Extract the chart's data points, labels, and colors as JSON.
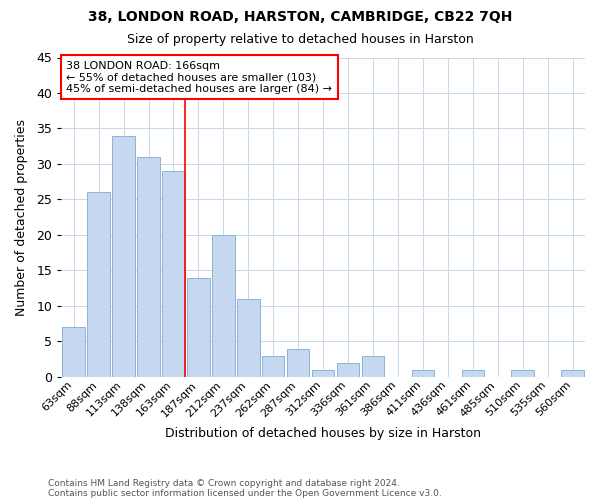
{
  "title1": "38, LONDON ROAD, HARSTON, CAMBRIDGE, CB22 7QH",
  "title2": "Size of property relative to detached houses in Harston",
  "xlabel": "Distribution of detached houses by size in Harston",
  "ylabel": "Number of detached properties",
  "footer1": "Contains HM Land Registry data © Crown copyright and database right 2024.",
  "footer2": "Contains public sector information licensed under the Open Government Licence v3.0.",
  "categories": [
    "63sqm",
    "88sqm",
    "113sqm",
    "138sqm",
    "163sqm",
    "187sqm",
    "212sqm",
    "237sqm",
    "262sqm",
    "287sqm",
    "312sqm",
    "336sqm",
    "361sqm",
    "386sqm",
    "411sqm",
    "436sqm",
    "461sqm",
    "485sqm",
    "510sqm",
    "535sqm",
    "560sqm"
  ],
  "values": [
    7,
    26,
    34,
    31,
    29,
    14,
    20,
    11,
    3,
    4,
    1,
    2,
    3,
    0,
    1,
    0,
    1,
    0,
    1,
    0,
    1
  ],
  "bar_color": "#c5d8f0",
  "bar_edge_color": "#8ab4d8",
  "highlight_index": 4,
  "red_line_label": "38 LONDON ROAD: 166sqm",
  "annotation_line1": "← 55% of detached houses are smaller (103)",
  "annotation_line2": "45% of semi-detached houses are larger (84) →",
  "ylim": [
    0,
    45
  ],
  "yticks": [
    0,
    5,
    10,
    15,
    20,
    25,
    30,
    35,
    40,
    45
  ]
}
